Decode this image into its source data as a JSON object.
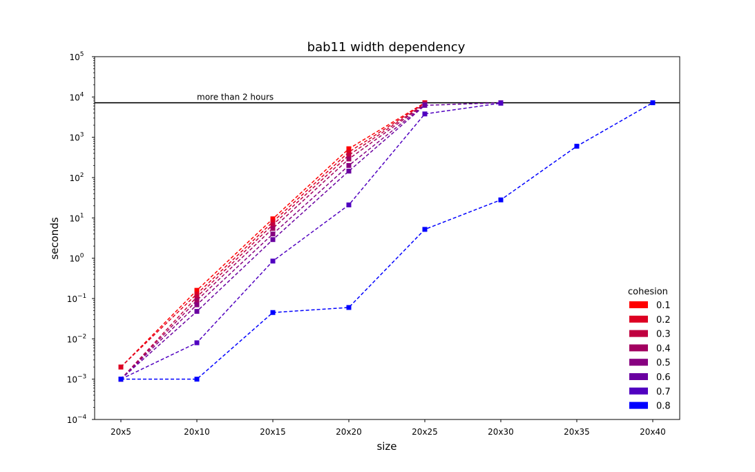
{
  "chart_data": {
    "type": "line",
    "title": "bab11 width dependency",
    "xlabel": "size",
    "ylabel": "seconds",
    "categories": [
      "20x5",
      "20x10",
      "20x15",
      "20x20",
      "20x25",
      "20x30",
      "20x35",
      "20x40"
    ],
    "yscale": "log",
    "ylim": [
      0.0001,
      100000
    ],
    "yticks": [
      {
        "value": 0.0001,
        "base": "10",
        "exp": "−4"
      },
      {
        "value": 0.001,
        "base": "10",
        "exp": "−3"
      },
      {
        "value": 0.01,
        "base": "10",
        "exp": "−2"
      },
      {
        "value": 0.1,
        "base": "10",
        "exp": "−1"
      },
      {
        "value": 1,
        "base": "10",
        "exp": "0"
      },
      {
        "value": 10,
        "base": "10",
        "exp": "1"
      },
      {
        "value": 100,
        "base": "10",
        "exp": "2"
      },
      {
        "value": 1000,
        "base": "10",
        "exp": "3"
      },
      {
        "value": 10000,
        "base": "10",
        "exp": "4"
      },
      {
        "value": 100000,
        "base": "10",
        "exp": "5"
      }
    ],
    "threshold": {
      "value": 7200,
      "label": "more than 2 hours"
    },
    "legend": {
      "title": "cohesion",
      "position": "lower right"
    },
    "grid": false,
    "series": [
      {
        "name": "0.1",
        "color": "#ff0000",
        "values": [
          0.002,
          0.16,
          9.5,
          520,
          7200,
          null,
          null,
          null
        ]
      },
      {
        "name": "0.2",
        "color": "#dd0022",
        "values": [
          0.002,
          0.13,
          8.0,
          430,
          7000,
          null,
          null,
          null
        ]
      },
      {
        "name": "0.3",
        "color": "#c00040",
        "values": [
          0.001,
          0.11,
          6.8,
          360,
          6800,
          null,
          null,
          null
        ]
      },
      {
        "name": "0.4",
        "color": "#a20060",
        "values": [
          0.001,
          0.09,
          5.5,
          290,
          6600,
          null,
          null,
          null
        ]
      },
      {
        "name": "0.5",
        "color": "#870080",
        "values": [
          0.001,
          0.07,
          4.0,
          200,
          6400,
          null,
          null,
          null
        ]
      },
      {
        "name": "0.6",
        "color": "#6a00a0",
        "values": [
          0.001,
          0.048,
          2.9,
          145,
          6200,
          7200,
          null,
          null
        ]
      },
      {
        "name": "0.7",
        "color": "#5000c0",
        "values": [
          0.001,
          0.008,
          0.85,
          21,
          3800,
          7000,
          null,
          null
        ]
      },
      {
        "name": "0.8",
        "color": "#0000ff",
        "values": [
          0.001,
          0.001,
          0.045,
          0.06,
          5.2,
          28,
          600,
          7200
        ]
      }
    ]
  }
}
